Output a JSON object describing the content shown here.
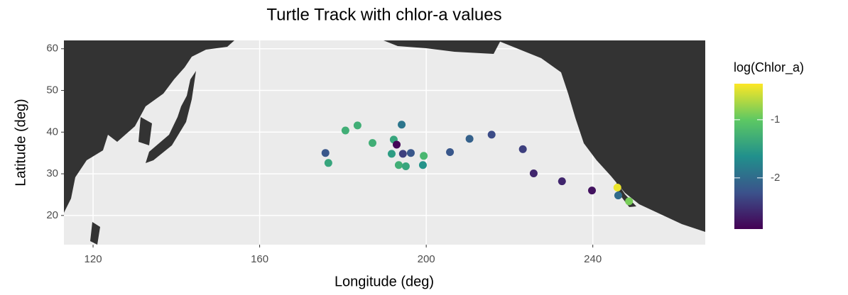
{
  "chart_data": {
    "type": "scatter",
    "title": "Turtle Track with chlor-a values",
    "x_label": "Longitude (deg)",
    "y_label": "Latitude (deg)",
    "color_label": "log(Chlor_a)",
    "x": [
      175.8,
      176.5,
      180.6,
      183.5,
      187.1,
      191.7,
      192.2,
      192.9,
      193.4,
      194.1,
      194.4,
      195.1,
      196.3,
      199.2,
      199.4,
      205.7,
      210.4,
      215.7,
      223.2,
      225.8,
      232.6,
      239.8,
      245.9,
      246.1,
      248.7
    ],
    "y": [
      35.0,
      32.6,
      40.4,
      41.6,
      37.4,
      34.8,
      38.2,
      37.0,
      32.1,
      41.8,
      34.8,
      31.8,
      35.0,
      32.1,
      34.3,
      35.2,
      38.4,
      39.4,
      35.9,
      30.1,
      28.2,
      26.0,
      26.7,
      24.8,
      23.4
    ],
    "color_values": [
      -2.2,
      -1.4,
      -1.3,
      -1.3,
      -1.3,
      -1.5,
      -1.4,
      -2.85,
      -1.3,
      -1.9,
      -2.4,
      -1.4,
      -2.2,
      -1.6,
      -1.2,
      -2.2,
      -2.1,
      -2.3,
      -2.4,
      -2.6,
      -2.6,
      -2.75,
      -0.45,
      -2.0,
      -0.9
    ],
    "xlim": [
      113,
      267
    ],
    "ylim": [
      13,
      62
    ],
    "xticks": [
      120,
      160,
      200,
      240
    ],
    "yticks": [
      20,
      30,
      40,
      50,
      60
    ],
    "clim": [
      -2.88,
      -0.38
    ],
    "cticks": [
      -2,
      -1
    ],
    "colormap": [
      "#440154",
      "#3b528b",
      "#21908c",
      "#5dc863",
      "#fde725"
    ],
    "grid": true
  }
}
